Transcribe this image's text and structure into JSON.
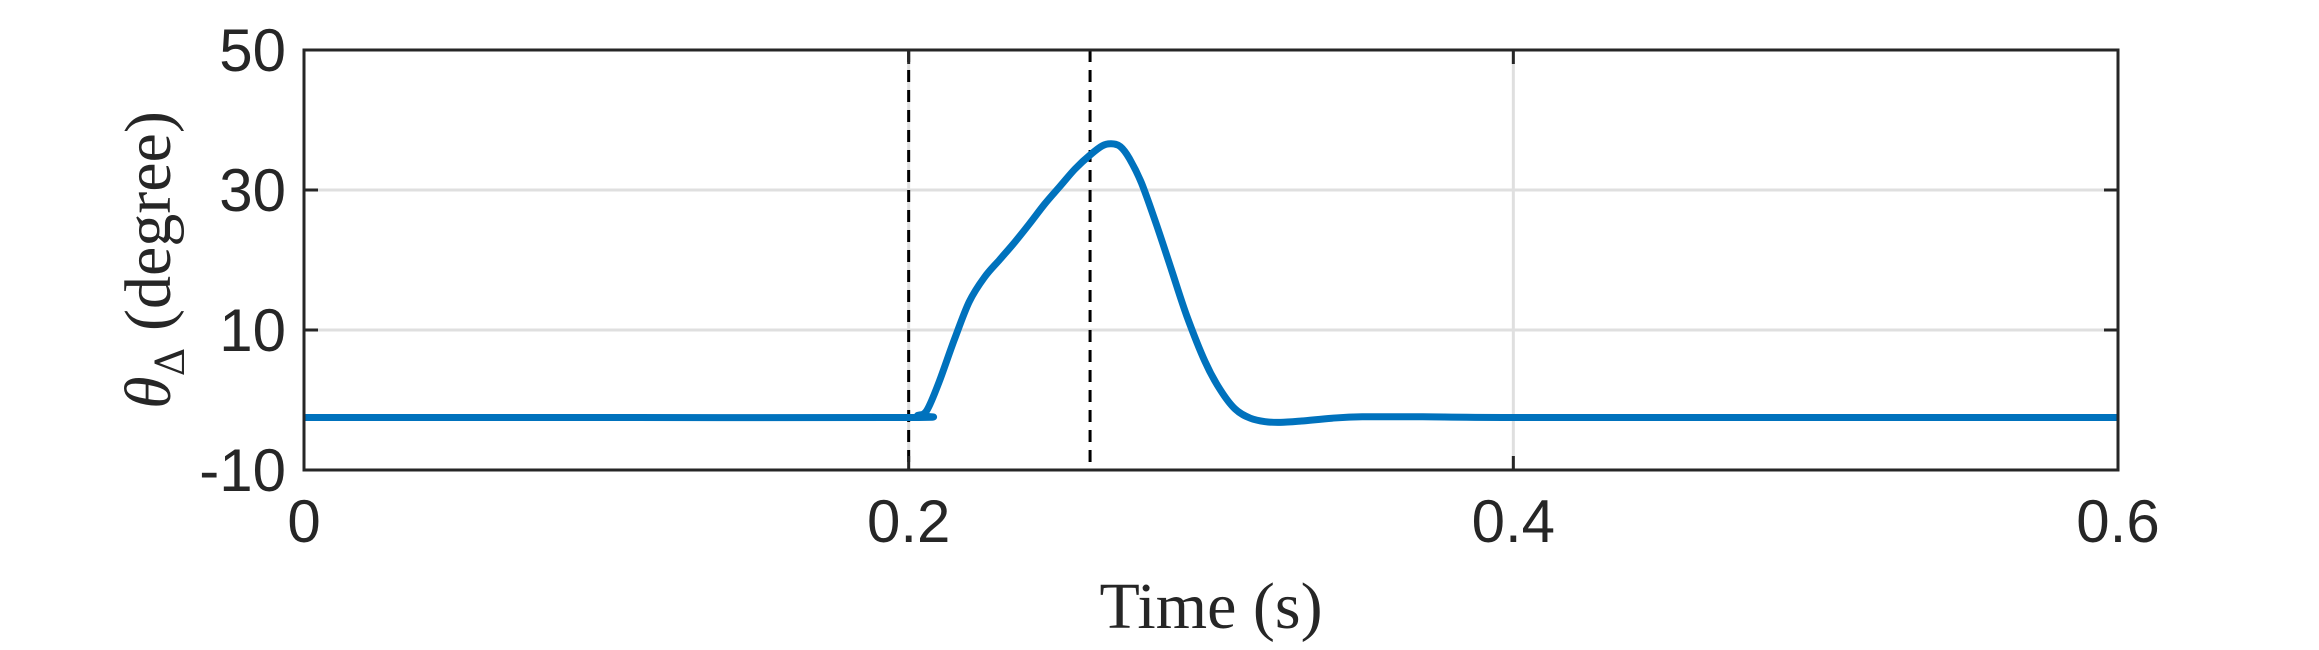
{
  "chart_data": {
    "type": "line",
    "xlabel": "Time (s)",
    "ylabel": {
      "symbol": "θ",
      "subscript": "Δ",
      "unit": " (degree)"
    },
    "xlim": [
      0,
      0.6
    ],
    "ylim": [
      -10,
      50
    ],
    "xticks": [
      0,
      0.2,
      0.4,
      0.6
    ],
    "xtick_labels": [
      "0",
      "0.2",
      "0.4",
      "0.6"
    ],
    "yticks": [
      -10,
      10,
      30,
      50
    ],
    "ytick_labels": [
      "-10",
      "10",
      "30",
      "50"
    ],
    "grid": true,
    "vlines": [
      0.2,
      0.26
    ],
    "series": [
      {
        "color": "#0072BD",
        "x": [
          0,
          0.1,
          0.2,
          0.203,
          0.206,
          0.21,
          0.215,
          0.22,
          0.225,
          0.23,
          0.235,
          0.24,
          0.245,
          0.25,
          0.255,
          0.26,
          0.264,
          0.267,
          0.27,
          0.273,
          0.277,
          0.282,
          0.287,
          0.292,
          0.298,
          0.303,
          0.308,
          0.313,
          0.318,
          0.323,
          0.33,
          0.34,
          0.35,
          0.37,
          0.4,
          0.5,
          0.6
        ],
        "y": [
          -2.5,
          -2.5,
          -2.5,
          -2.2,
          -1.5,
          2.5,
          8.5,
          14,
          17.5,
          20,
          22.5,
          25.2,
          28,
          30.5,
          33,
          35,
          36.3,
          36.6,
          36.2,
          34.5,
          31,
          25,
          18.5,
          12,
          5.5,
          1.5,
          -1.3,
          -2.6,
          -3.1,
          -3.2,
          -3,
          -2.6,
          -2.4,
          -2.4,
          -2.5,
          -2.5,
          -2.5
        ]
      }
    ]
  },
  "colors": {
    "line": "#0072BD",
    "grid": "#DFDFDF",
    "axes": "#262626",
    "reference_lines": "#000000"
  }
}
